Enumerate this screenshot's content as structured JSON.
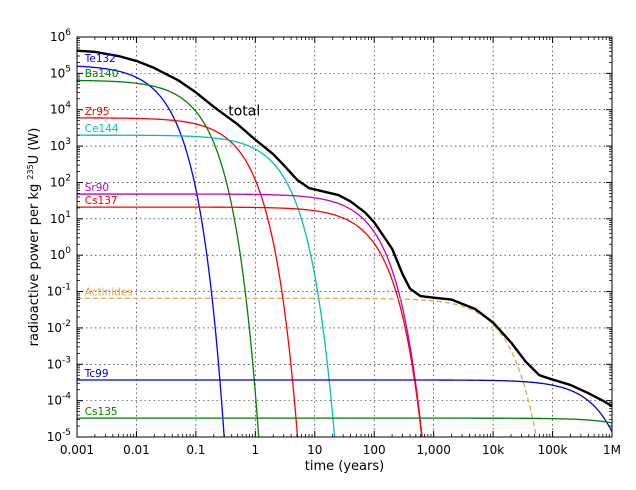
{
  "chart_data": {
    "type": "line",
    "x_scale": "log",
    "y_scale": "log",
    "xlabel": "time (years)",
    "ylabel_prefix": "radioactive power per kg ",
    "ylabel_sup": "235",
    "ylabel_suffix": "U (W)",
    "xlim": [
      0.001,
      1000000
    ],
    "ylim": [
      1e-05,
      1000000
    ],
    "x_ticks": [
      {
        "value": 0.001,
        "label": "0.001"
      },
      {
        "value": 0.01,
        "label": "0.01"
      },
      {
        "value": 0.1,
        "label": "0.1"
      },
      {
        "value": 1,
        "label": "1"
      },
      {
        "value": 10,
        "label": "10"
      },
      {
        "value": 100,
        "label": "100"
      },
      {
        "value": 1000,
        "label": "1,000"
      },
      {
        "value": 10000,
        "label": "10k"
      },
      {
        "value": 100000,
        "label": "100k"
      },
      {
        "value": 1000000,
        "label": "1M"
      }
    ],
    "y_ticks": [
      {
        "value": 1e-05,
        "base": "10",
        "exp": "-5"
      },
      {
        "value": 0.0001,
        "base": "10",
        "exp": "-4"
      },
      {
        "value": 0.001,
        "base": "10",
        "exp": "-3"
      },
      {
        "value": 0.01,
        "base": "10",
        "exp": "-2"
      },
      {
        "value": 0.1,
        "base": "10",
        "exp": "-1"
      },
      {
        "value": 1,
        "base": "10",
        "exp": "0"
      },
      {
        "value": 10,
        "base": "10",
        "exp": "1"
      },
      {
        "value": 100,
        "base": "10",
        "exp": "2"
      },
      {
        "value": 1000,
        "base": "10",
        "exp": "3"
      },
      {
        "value": 10000,
        "base": "10",
        "exp": "4"
      },
      {
        "value": 100000,
        "base": "10",
        "exp": "5"
      },
      {
        "value": 1000000,
        "base": "10",
        "exp": "6"
      }
    ],
    "grid": true,
    "series": [
      {
        "name": "Te132",
        "color": "#0000ff",
        "A": 170000,
        "half_life_years": 0.0088,
        "label_at": {
          "x": 0.00135,
          "y": 170000
        }
      },
      {
        "name": "Ba140",
        "color": "#007f00",
        "A": 65000,
        "half_life_years": 0.035,
        "label_at": {
          "x": 0.00135,
          "y": 65000
        }
      },
      {
        "name": "Zr95",
        "color": "#ff0000",
        "A": 6000,
        "half_life_years": 0.176,
        "label_at": {
          "x": 0.00135,
          "y": 6000
        }
      },
      {
        "name": "Ce144",
        "color": "#00bfbf",
        "A": 2000,
        "half_life_years": 0.78,
        "label_at": {
          "x": 0.00135,
          "y": 2000
        }
      },
      {
        "name": "Sr90",
        "color": "#bf00bf",
        "A": 48,
        "half_life_years": 28.8,
        "label_at": {
          "x": 0.00135,
          "y": 48
        }
      },
      {
        "name": "Cs137",
        "color": "#ff0000",
        "A": 21,
        "half_life_years": 30.1,
        "label_at": {
          "x": 0.00135,
          "y": 21
        }
      },
      {
        "name": "Actinides",
        "color": "#e5a54b",
        "A": 0.065,
        "half_life_years": 4200,
        "dashed": true,
        "label_at": {
          "x": 0.00135,
          "y": 0.065
        }
      },
      {
        "name": "Tc99",
        "color": "#0000bf",
        "A": 0.00037,
        "half_life_years": 211000,
        "label_at": {
          "x": 0.00135,
          "y": 0.00037
        }
      },
      {
        "name": "Cs135",
        "color": "#007f00",
        "A": 3.3e-05,
        "half_life_years": 2300000,
        "label_at": {
          "x": 0.00135,
          "y": 3.3e-05
        }
      }
    ],
    "total": {
      "name": "total",
      "color": "#000000",
      "label_at": {
        "x": 0.35,
        "y": 7000
      },
      "points": [
        [
          0.001,
          420000
        ],
        [
          0.002,
          390000
        ],
        [
          0.005,
          300000
        ],
        [
          0.01,
          220000
        ],
        [
          0.02,
          140000
        ],
        [
          0.05,
          65000
        ],
        [
          0.1,
          30000
        ],
        [
          0.2,
          12000
        ],
        [
          0.5,
          4000
        ],
        [
          1,
          1500
        ],
        [
          2,
          600
        ],
        [
          3,
          300
        ],
        [
          5,
          120
        ],
        [
          8,
          70
        ],
        [
          15,
          55
        ],
        [
          25,
          45
        ],
        [
          40,
          30
        ],
        [
          70,
          15
        ],
        [
          100,
          8
        ],
        [
          200,
          1.5
        ],
        [
          300,
          0.3
        ],
        [
          400,
          0.12
        ],
        [
          600,
          0.075
        ],
        [
          1000,
          0.068
        ],
        [
          2000,
          0.06
        ],
        [
          5000,
          0.033
        ],
        [
          10000,
          0.014
        ],
        [
          20000,
          0.004
        ],
        [
          35000,
          0.0012
        ],
        [
          60000,
          0.0005
        ],
        [
          100000,
          0.00038
        ],
        [
          200000,
          0.00027
        ],
        [
          400000,
          0.00016
        ],
        [
          700000,
          0.0001
        ],
        [
          1000000,
          7e-05
        ]
      ]
    }
  }
}
